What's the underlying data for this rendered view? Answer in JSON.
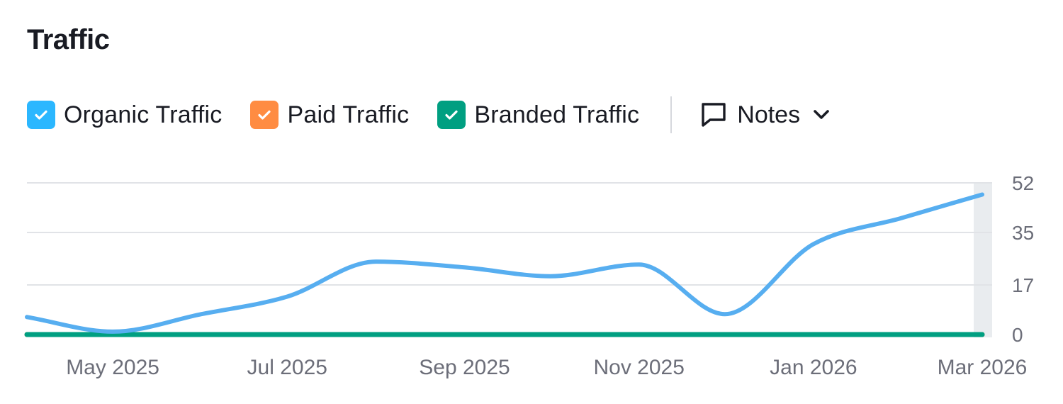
{
  "title": "Traffic",
  "legend": [
    {
      "label": "Organic Traffic",
      "color": "#2bb7ff",
      "checked": true
    },
    {
      "label": "Paid Traffic",
      "color": "#ff8c42",
      "checked": true
    },
    {
      "label": "Branded Traffic",
      "color": "#009f81",
      "checked": true
    }
  ],
  "notes": {
    "label": "Notes",
    "icon": "message-square-icon",
    "chevron": "chevron-down-icon"
  },
  "chart_data": {
    "type": "line",
    "x": [
      "2025-04-01",
      "2025-05-01",
      "2025-06-01",
      "2025-07-01",
      "2025-08-01",
      "2025-09-01",
      "2025-10-01",
      "2025-11-01",
      "2025-12-01",
      "2026-01-01",
      "2026-02-01",
      "2026-03-01"
    ],
    "x_tick_labels": [
      "May 2025",
      "Jul 2025",
      "Sep 2025",
      "Nov 2025",
      "Jan 2026",
      "Mar 2026"
    ],
    "x_tick_dates": [
      "2025-05-01",
      "2025-07-01",
      "2025-09-01",
      "2025-11-01",
      "2026-01-01",
      "2026-03-01"
    ],
    "y_ticks": [
      0,
      17,
      35,
      52
    ],
    "ylim": [
      0,
      52
    ],
    "grid": true,
    "series": [
      {
        "name": "Organic Traffic",
        "color": "#57aef0",
        "values": [
          6,
          1,
          7,
          13,
          25,
          23,
          20,
          24,
          7,
          31,
          40,
          48
        ]
      },
      {
        "name": "Paid Traffic",
        "color": "#ff8c42",
        "values": [
          0,
          0,
          0,
          0,
          0,
          0,
          0,
          0,
          0,
          0,
          0,
          0
        ]
      },
      {
        "name": "Branded Traffic",
        "color": "#009f81",
        "values": [
          0,
          0,
          0,
          0,
          0,
          0,
          0,
          0,
          0,
          0,
          0,
          0
        ]
      }
    ]
  }
}
